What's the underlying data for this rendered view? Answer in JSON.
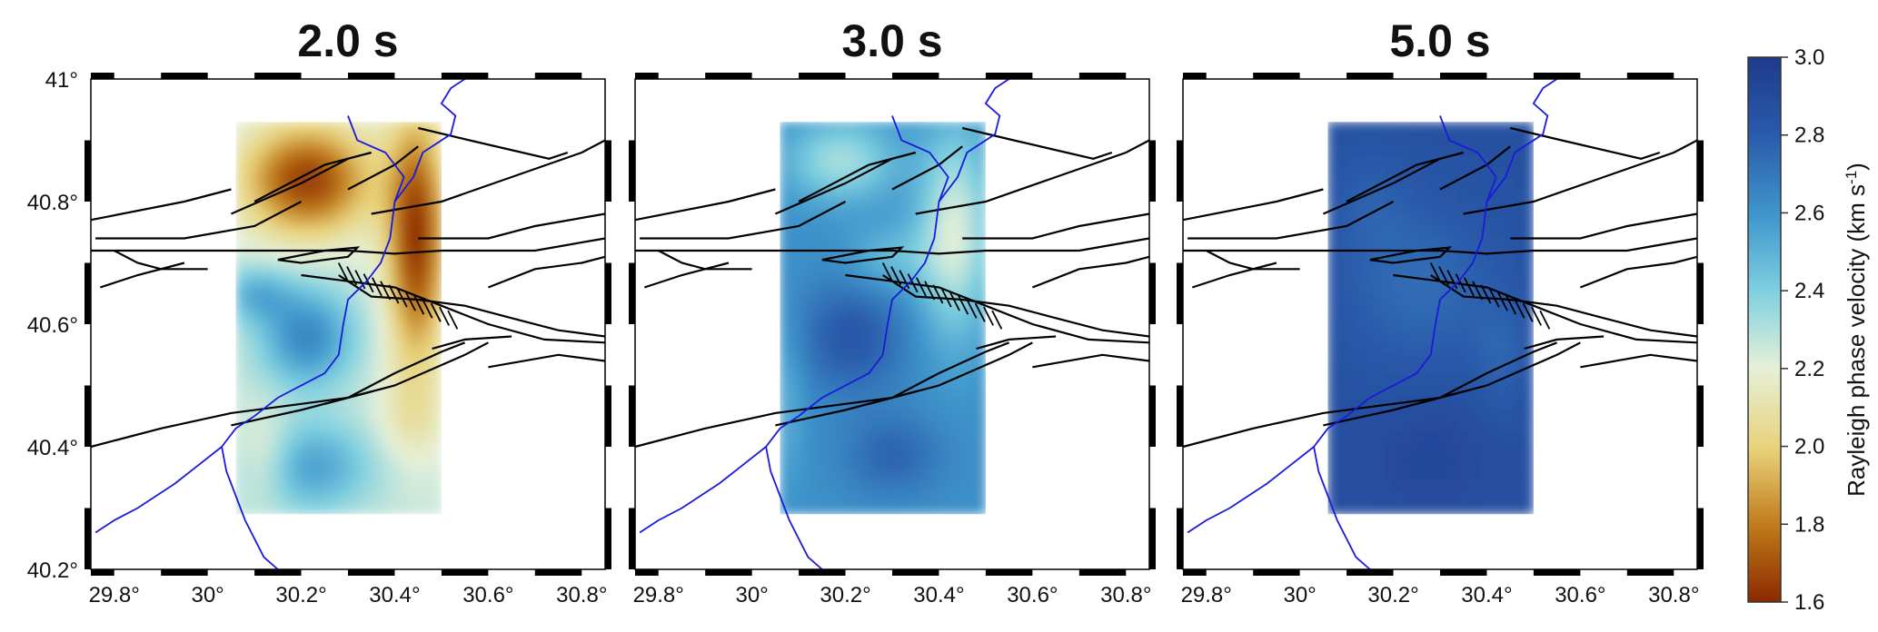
{
  "panels": [
    {
      "title": "2.0 s",
      "period_s": 2.0,
      "field": "2s"
    },
    {
      "title": "3.0 s",
      "period_s": 3.0,
      "field": "3s"
    },
    {
      "title": "5.0 s",
      "period_s": 5.0,
      "field": "5s"
    }
  ],
  "map": {
    "lon_range": [
      29.75,
      30.85
    ],
    "lat_range": [
      40.2,
      41.0
    ],
    "x_ticks": [
      "29.8°",
      "30°",
      "30.2°",
      "30.4°",
      "30.6°",
      "30.8°"
    ],
    "x_tick_values": [
      29.8,
      30.0,
      30.2,
      30.4,
      30.6,
      30.8
    ],
    "y_ticks": [
      "41°",
      "40.8°",
      "40.6°",
      "40.4°",
      "40.2°"
    ],
    "y_tick_values": [
      41.0,
      40.8,
      40.6,
      40.4,
      40.2
    ],
    "velocity_region": {
      "lon": [
        30.06,
        30.5
      ],
      "lat": [
        40.29,
        40.93
      ]
    },
    "fault_color": "#000000",
    "river_color": "#1a1adb"
  },
  "colorbar": {
    "label": "Rayleigh phase velocity (km s",
    "label_sup": "-1",
    "label_end": ")",
    "min": 1.6,
    "max": 3.0,
    "ticks": [
      "3.0",
      "2.8",
      "2.6",
      "2.4",
      "2.2",
      "2.0",
      "1.8",
      "1.6"
    ],
    "tick_values": [
      3.0,
      2.8,
      2.6,
      2.4,
      2.2,
      2.0,
      1.8,
      1.6
    ],
    "colors": [
      "#8a2a00",
      "#c07a1a",
      "#e8d27a",
      "#e6f0d8",
      "#7fd0e0",
      "#3f96cc",
      "#2a5aaa",
      "#1f3a8c"
    ]
  }
}
